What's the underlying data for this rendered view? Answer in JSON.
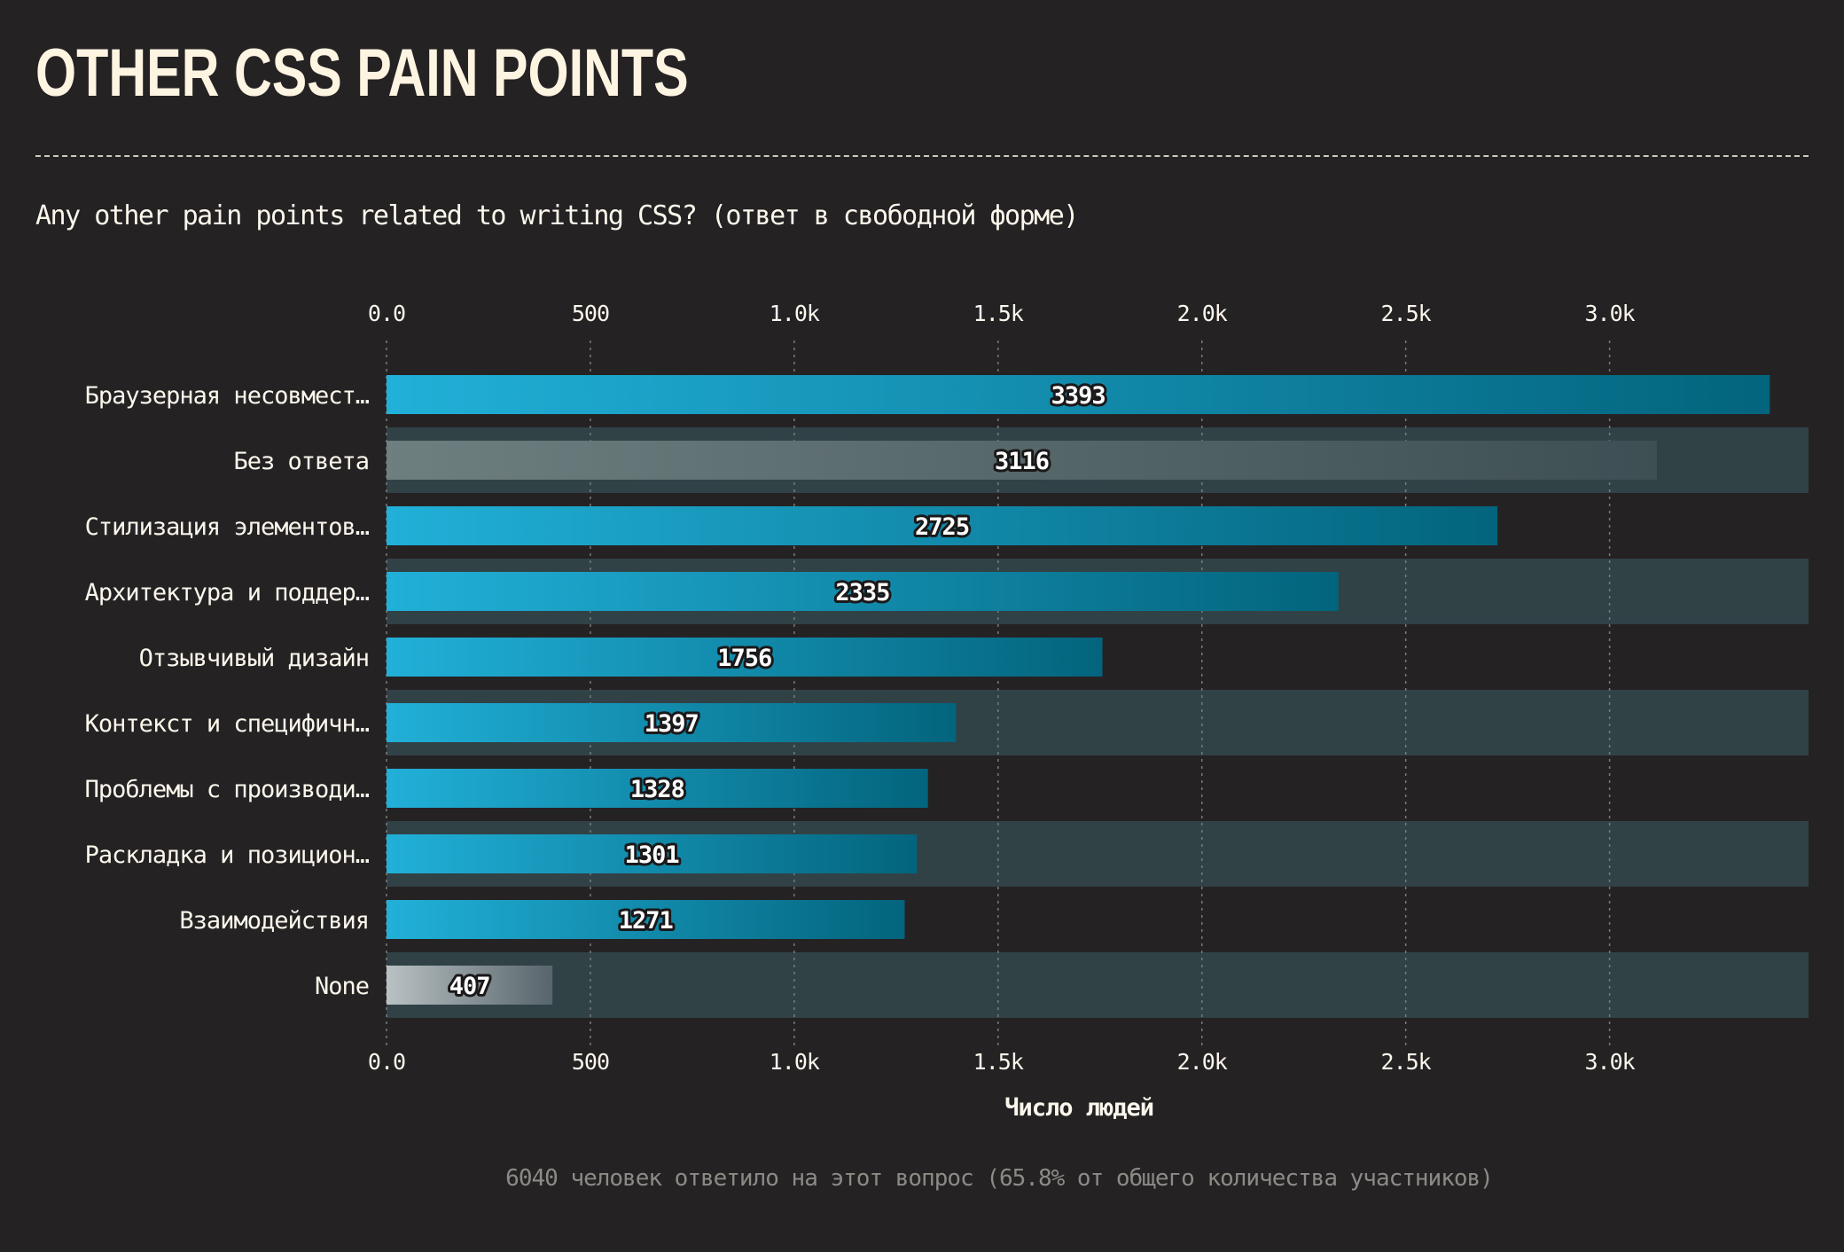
{
  "header": {
    "title": "OTHER CSS PAIN POINTS",
    "question": "Any other pain points related to writing CSS? (ответ в свободной форме)"
  },
  "footnote": "6040 человек ответило на этот вопрос (65.8% от общего количества участников)",
  "colors": {
    "background": "#252224",
    "bar_start": "#21b0d8",
    "bar_end": "#03647d",
    "neutral_start": "#6e7f80",
    "neutral_end": "#3e4f54",
    "none_start": "#b9c1c3",
    "none_end": "#56656b",
    "band": "#314247",
    "grid": "#7a7a7a",
    "text": "#fcf7ec"
  },
  "chart_data": {
    "type": "bar",
    "orientation": "horizontal",
    "categories": [
      "Браузерная несовмест…",
      "Без ответа",
      "Стилизация элементов…",
      "Архитектура и поддер…",
      "Отзывчивый дизайн",
      "Контекст и специфичн…",
      "Проблемы с производи…",
      "Раскладка и позицион…",
      "Взаимодействия",
      "None"
    ],
    "values": [
      3393,
      3116,
      2725,
      2335,
      1756,
      1397,
      1328,
      1301,
      1271,
      407
    ],
    "value_labels": [
      "3393",
      "3116",
      "2725",
      "2335",
      "1756",
      "1397",
      "1328",
      "1301",
      "1271",
      "407"
    ],
    "bar_styles": [
      "accent",
      "neutral",
      "accent",
      "accent",
      "accent",
      "accent",
      "accent",
      "accent",
      "accent",
      "none"
    ],
    "xlabel": "Число людей",
    "xlim": [
      0,
      3488
    ],
    "xticks": [
      0,
      500,
      1000,
      1500,
      2000,
      2500,
      3000
    ],
    "xtick_labels": [
      "0.0",
      "500",
      "1.0k",
      "1.5k",
      "2.0k",
      "2.5k",
      "3.0k"
    ],
    "grid": true,
    "axis_position": "top and bottom",
    "alternating_row_bands": true
  }
}
